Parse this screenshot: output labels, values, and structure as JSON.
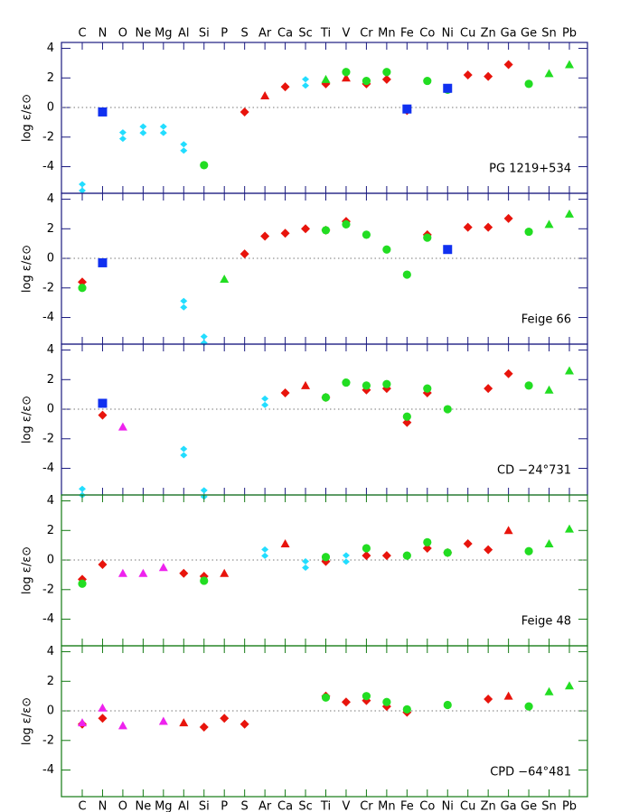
{
  "chart_data": [
    {
      "type": "scatter",
      "annotation": "PG 1219+534",
      "ylabel": "log ε/ε⊙",
      "category_axis": "top",
      "categories": [
        "C",
        "N",
        "O",
        "Ne",
        "Mg",
        "Al",
        "Si",
        "P",
        "S",
        "Ar",
        "Ca",
        "Sc",
        "Ti",
        "V",
        "Cr",
        "Mn",
        "Fe",
        "Co",
        "Ni",
        "Cu",
        "Zn",
        "Ga",
        "Ge",
        "Sn",
        "Pb"
      ],
      "ylim": [
        -5.8,
        4.4
      ],
      "yticks": [
        -4,
        -2,
        0,
        2,
        4
      ],
      "zero_line": true,
      "frame_color": "#1a1a80",
      "series": [
        {
          "marker": "double-diamond",
          "color": "#22ddff",
          "values": [
            -5.4,
            null,
            -1.9,
            -1.5,
            -1.5,
            -2.7,
            null,
            null,
            null,
            null,
            null,
            1.7,
            null,
            null,
            null,
            null,
            null,
            null,
            null,
            null,
            null,
            null,
            null,
            null,
            null
          ]
        },
        {
          "marker": "diamond",
          "color": "#e8140c",
          "values": [
            null,
            null,
            null,
            null,
            null,
            null,
            null,
            null,
            -0.3,
            null,
            1.4,
            null,
            1.6,
            null,
            1.6,
            1.9,
            -0.2,
            null,
            null,
            2.2,
            2.1,
            2.9,
            null,
            null,
            null
          ]
        },
        {
          "marker": "triangle",
          "color": "#e8140c",
          "values": [
            null,
            null,
            null,
            null,
            null,
            null,
            null,
            null,
            null,
            0.8,
            null,
            null,
            null,
            2.0,
            null,
            null,
            null,
            null,
            null,
            null,
            null,
            null,
            null,
            null,
            null
          ]
        },
        {
          "marker": "circle",
          "color": "#22dd22",
          "values": [
            null,
            null,
            null,
            null,
            null,
            null,
            -3.9,
            null,
            null,
            null,
            null,
            null,
            null,
            2.4,
            1.8,
            2.4,
            null,
            1.8,
            1.2,
            null,
            null,
            null,
            1.6,
            null,
            null
          ]
        },
        {
          "marker": "triangle",
          "color": "#22dd22",
          "values": [
            null,
            null,
            null,
            null,
            null,
            null,
            null,
            null,
            null,
            null,
            null,
            null,
            1.9,
            null,
            null,
            null,
            null,
            null,
            null,
            null,
            null,
            null,
            null,
            2.3,
            2.9
          ]
        },
        {
          "marker": "square",
          "color": "#1030f0",
          "values": [
            null,
            -0.3,
            null,
            null,
            null,
            null,
            null,
            null,
            null,
            null,
            null,
            null,
            null,
            null,
            null,
            null,
            -0.1,
            null,
            1.3,
            null,
            null,
            null,
            null,
            null,
            null
          ]
        }
      ]
    },
    {
      "type": "scatter",
      "annotation": "Feige 66",
      "ylabel": "log ε/ε⊙",
      "ylim": [
        -5.8,
        4.4
      ],
      "yticks": [
        -4,
        -2,
        0,
        2,
        4
      ],
      "zero_line": true,
      "frame_color": "#1a1a80",
      "series": [
        {
          "marker": "double-diamond",
          "color": "#22ddff",
          "values": [
            null,
            null,
            null,
            null,
            null,
            -3.1,
            -5.5,
            null,
            null,
            null,
            null,
            null,
            null,
            null,
            null,
            null,
            null,
            null,
            null,
            null,
            null,
            null,
            null,
            null,
            null
          ]
        },
        {
          "marker": "diamond",
          "color": "#e8140c",
          "values": [
            -1.6,
            null,
            null,
            null,
            null,
            null,
            null,
            null,
            0.3,
            1.5,
            1.7,
            2.0,
            1.9,
            2.5,
            null,
            null,
            null,
            1.6,
            null,
            2.1,
            2.1,
            2.7,
            null,
            null,
            null
          ]
        },
        {
          "marker": "circle",
          "color": "#22dd22",
          "values": [
            -2.0,
            null,
            null,
            null,
            null,
            null,
            null,
            null,
            null,
            null,
            null,
            null,
            1.9,
            2.3,
            1.6,
            0.6,
            -1.1,
            1.4,
            null,
            null,
            null,
            null,
            1.8,
            null,
            null
          ]
        },
        {
          "marker": "triangle",
          "color": "#22dd22",
          "values": [
            null,
            null,
            null,
            null,
            null,
            null,
            null,
            -1.4,
            null,
            null,
            null,
            null,
            null,
            null,
            null,
            null,
            null,
            null,
            null,
            null,
            null,
            null,
            null,
            2.3,
            3.0
          ]
        },
        {
          "marker": "square",
          "color": "#1030f0",
          "values": [
            null,
            -0.3,
            null,
            null,
            null,
            null,
            null,
            null,
            null,
            null,
            null,
            null,
            null,
            null,
            null,
            null,
            null,
            null,
            0.6,
            null,
            null,
            null,
            null,
            null,
            null
          ]
        }
      ]
    },
    {
      "type": "scatter",
      "annotation": "CD −24°731",
      "ylabel": "log ε/ε⊙",
      "ylim": [
        -5.8,
        4.4
      ],
      "yticks": [
        -4,
        -2,
        0,
        2,
        4
      ],
      "zero_line": true,
      "frame_color": "#1a1a80",
      "series": [
        {
          "marker": "double-diamond",
          "color": "#22ddff",
          "values": [
            -5.6,
            null,
            null,
            null,
            null,
            -2.9,
            -5.7,
            null,
            null,
            0.5,
            null,
            null,
            null,
            null,
            null,
            null,
            null,
            null,
            null,
            null,
            null,
            null,
            null,
            null,
            null
          ]
        },
        {
          "marker": "diamond",
          "color": "#e8140c",
          "values": [
            null,
            -0.4,
            null,
            null,
            null,
            null,
            null,
            null,
            null,
            null,
            1.1,
            null,
            0.8,
            null,
            1.3,
            1.4,
            -0.9,
            1.1,
            null,
            null,
            1.4,
            2.4,
            null,
            null,
            null
          ]
        },
        {
          "marker": "triangle",
          "color": "#e8140c",
          "values": [
            null,
            null,
            null,
            null,
            null,
            null,
            null,
            null,
            null,
            null,
            null,
            1.6,
            null,
            null,
            null,
            null,
            null,
            null,
            null,
            null,
            null,
            null,
            null,
            null,
            null
          ]
        },
        {
          "marker": "triangle",
          "color": "#ee22ee",
          "values": [
            null,
            null,
            -1.2,
            null,
            null,
            null,
            null,
            null,
            null,
            null,
            null,
            null,
            null,
            null,
            null,
            null,
            null,
            null,
            null,
            null,
            null,
            null,
            null,
            null,
            null
          ]
        },
        {
          "marker": "circle",
          "color": "#22dd22",
          "values": [
            null,
            null,
            null,
            null,
            null,
            null,
            null,
            null,
            null,
            null,
            null,
            null,
            0.8,
            1.8,
            1.6,
            1.7,
            -0.5,
            1.4,
            0.0,
            null,
            null,
            null,
            1.6,
            null,
            null
          ]
        },
        {
          "marker": "triangle",
          "color": "#22dd22",
          "values": [
            null,
            null,
            null,
            null,
            null,
            null,
            null,
            null,
            null,
            null,
            null,
            null,
            null,
            null,
            null,
            null,
            null,
            null,
            null,
            null,
            null,
            null,
            null,
            1.3,
            2.6
          ]
        },
        {
          "marker": "square",
          "color": "#1030f0",
          "values": [
            null,
            0.4,
            null,
            null,
            null,
            null,
            null,
            null,
            null,
            null,
            null,
            null,
            null,
            null,
            null,
            null,
            null,
            null,
            null,
            null,
            null,
            null,
            null,
            null,
            null
          ]
        }
      ]
    },
    {
      "type": "scatter",
      "annotation": "Feige 48",
      "ylabel": "log ε/ε⊙",
      "ylim": [
        -5.8,
        4.4
      ],
      "yticks": [
        -4,
        -2,
        0,
        2,
        4
      ],
      "zero_line": true,
      "frame_color": "#137a13",
      "series": [
        {
          "marker": "double-diamond",
          "color": "#22ddff",
          "values": [
            null,
            null,
            null,
            null,
            null,
            null,
            null,
            null,
            null,
            0.5,
            null,
            -0.3,
            null,
            0.1,
            null,
            null,
            null,
            null,
            null,
            null,
            null,
            null,
            null,
            null,
            null
          ]
        },
        {
          "marker": "diamond",
          "color": "#e8140c",
          "values": [
            -1.3,
            -0.3,
            null,
            null,
            null,
            -0.9,
            -1.1,
            null,
            null,
            null,
            null,
            null,
            -0.1,
            null,
            0.3,
            0.3,
            null,
            0.8,
            0.5,
            1.1,
            0.7,
            null,
            null,
            null,
            null
          ]
        },
        {
          "marker": "triangle",
          "color": "#e8140c",
          "values": [
            null,
            null,
            null,
            null,
            null,
            null,
            null,
            -0.9,
            null,
            null,
            1.1,
            null,
            null,
            null,
            null,
            null,
            null,
            null,
            null,
            null,
            null,
            2.0,
            null,
            null,
            null
          ]
        },
        {
          "marker": "triangle",
          "color": "#ee22ee",
          "values": [
            null,
            null,
            -0.9,
            -0.9,
            -0.5,
            null,
            null,
            null,
            null,
            null,
            null,
            null,
            null,
            null,
            null,
            null,
            null,
            null,
            null,
            null,
            null,
            null,
            null,
            null,
            null
          ]
        },
        {
          "marker": "circle",
          "color": "#22dd22",
          "values": [
            -1.6,
            null,
            null,
            null,
            null,
            null,
            -1.4,
            null,
            null,
            null,
            null,
            null,
            0.2,
            null,
            0.8,
            null,
            0.3,
            1.2,
            0.5,
            null,
            null,
            null,
            0.6,
            null,
            null
          ]
        },
        {
          "marker": "triangle",
          "color": "#22dd22",
          "values": [
            null,
            null,
            null,
            null,
            null,
            null,
            null,
            null,
            null,
            null,
            null,
            null,
            null,
            null,
            null,
            null,
            null,
            null,
            null,
            null,
            null,
            null,
            null,
            1.1,
            2.1
          ]
        }
      ]
    },
    {
      "type": "scatter",
      "annotation": "CPD −64°481",
      "ylabel": "log ε/ε⊙",
      "category_axis": "bottom",
      "categories": [
        "C",
        "N",
        "O",
        "Ne",
        "Mg",
        "Al",
        "Si",
        "P",
        "S",
        "Ar",
        "Ca",
        "Sc",
        "Ti",
        "V",
        "Cr",
        "Mn",
        "Fe",
        "Co",
        "Ni",
        "Cu",
        "Zn",
        "Ga",
        "Ge",
        "Sn",
        "Pb"
      ],
      "ylim": [
        -5.8,
        4.4
      ],
      "yticks": [
        -4,
        -2,
        0,
        2,
        4
      ],
      "zero_line": true,
      "frame_color": "#137a13",
      "series": [
        {
          "marker": "diamond",
          "color": "#e8140c",
          "values": [
            -0.9,
            -0.5,
            null,
            null,
            null,
            null,
            -1.1,
            -0.5,
            -0.9,
            null,
            null,
            null,
            1.0,
            0.6,
            0.7,
            0.3,
            -0.1,
            null,
            null,
            null,
            0.8,
            null,
            null,
            null,
            null
          ]
        },
        {
          "marker": "triangle",
          "color": "#e8140c",
          "values": [
            null,
            null,
            null,
            null,
            null,
            -0.8,
            null,
            null,
            null,
            null,
            null,
            null,
            null,
            null,
            null,
            null,
            null,
            null,
            null,
            null,
            null,
            1.0,
            null,
            null,
            null
          ]
        },
        {
          "marker": "triangle",
          "color": "#ee22ee",
          "values": [
            -0.8,
            0.2,
            -1.0,
            null,
            -0.7,
            null,
            null,
            null,
            null,
            null,
            null,
            null,
            null,
            null,
            null,
            null,
            null,
            null,
            null,
            null,
            null,
            null,
            null,
            null,
            null
          ]
        },
        {
          "marker": "circle",
          "color": "#22dd22",
          "values": [
            null,
            null,
            null,
            null,
            null,
            null,
            null,
            null,
            null,
            null,
            null,
            null,
            0.9,
            null,
            1.0,
            0.6,
            0.1,
            null,
            0.4,
            null,
            null,
            null,
            0.3,
            null,
            null
          ]
        },
        {
          "marker": "triangle",
          "color": "#22dd22",
          "values": [
            null,
            null,
            null,
            null,
            null,
            null,
            null,
            null,
            null,
            null,
            null,
            null,
            null,
            null,
            null,
            null,
            null,
            null,
            null,
            null,
            null,
            null,
            null,
            1.3,
            1.7
          ]
        }
      ]
    }
  ]
}
